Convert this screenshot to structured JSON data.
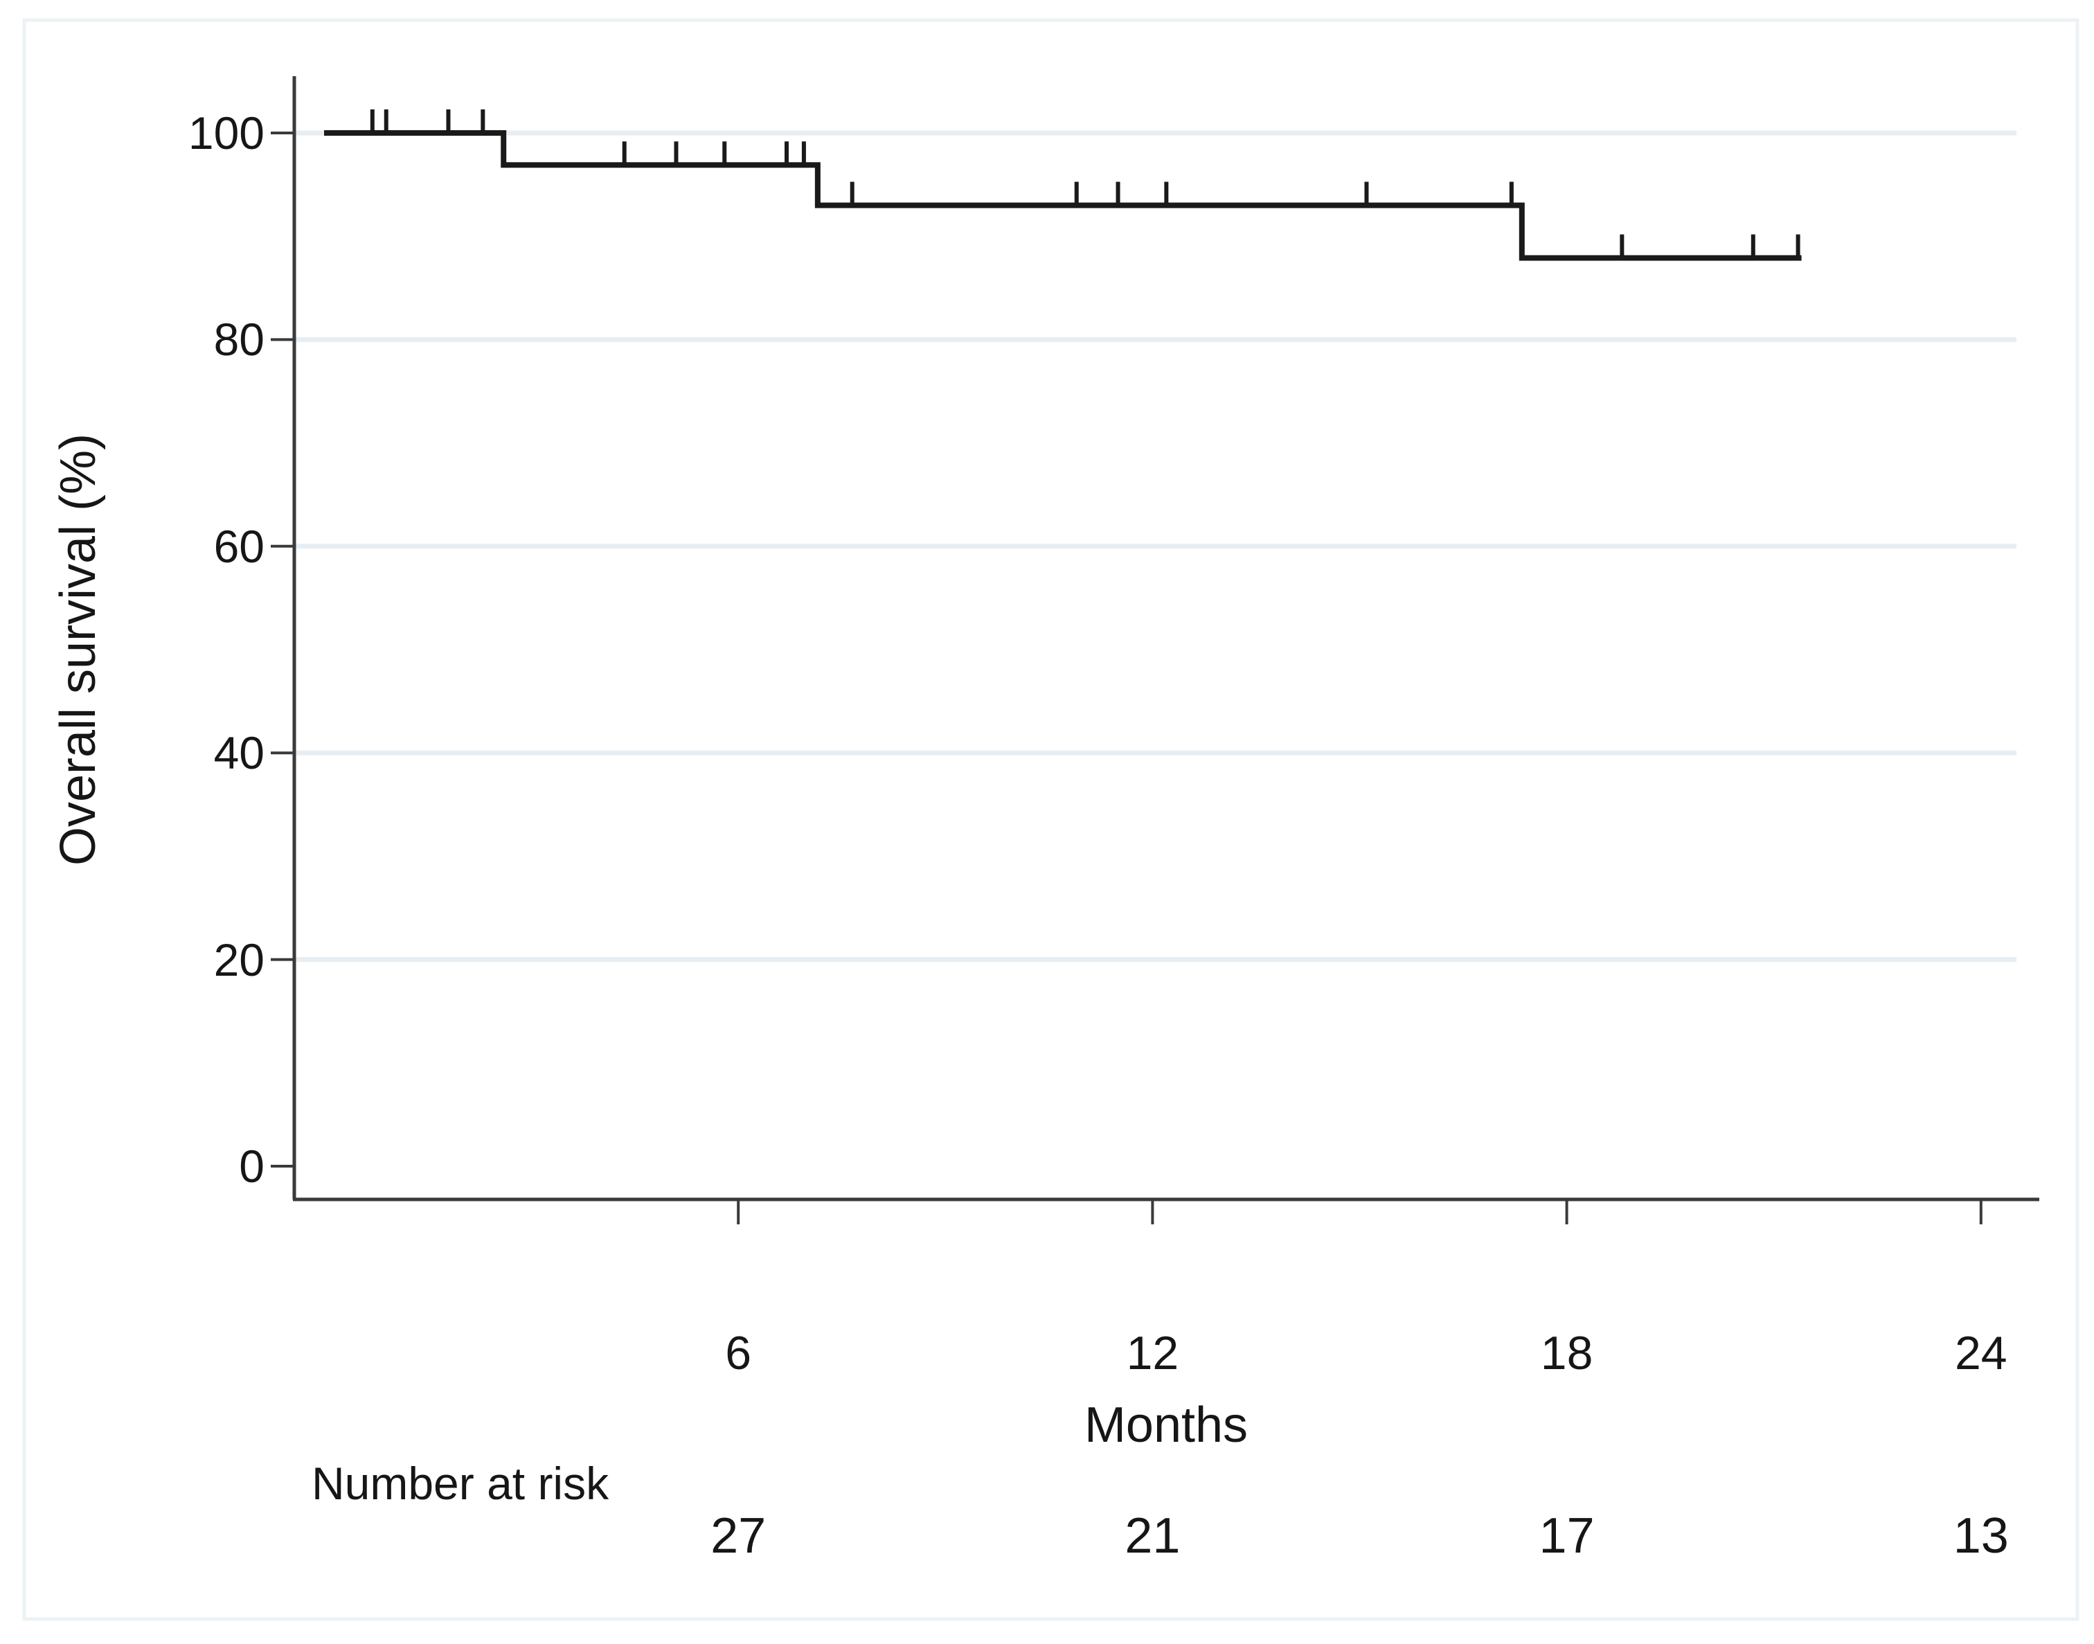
{
  "figure": {
    "background": "#ffffff",
    "frame_color": "#ecf2f4",
    "text_color": "#161616"
  },
  "chart_data": {
    "type": "line",
    "subtype": "kaplan-meier-step",
    "title": "",
    "xlabel": "Months",
    "ylabel": "Overall survival (%)",
    "x_ticks": [
      6,
      12,
      18,
      24
    ],
    "y_ticks": [
      100,
      80,
      60,
      40,
      20,
      0
    ],
    "y_gridlines": [
      100,
      80,
      60,
      40,
      20
    ],
    "xlim": [
      0,
      24.5
    ],
    "ylim": [
      0,
      105
    ],
    "grid": "on",
    "legend": "none",
    "curve_color": "#1a1a1a",
    "grid_color": "#e7eef3",
    "axis_color": "#3a3a3a",
    "km_steps": [
      {
        "t_start": 0,
        "t_end": 2.6,
        "survival": 100
      },
      {
        "t_start": 2.6,
        "t_end": 7.15,
        "survival": 96.9
      },
      {
        "t_start": 7.15,
        "t_end": 17.35,
        "survival": 93.0
      },
      {
        "t_start": 17.35,
        "t_end": 21.4,
        "survival": 87.9
      }
    ],
    "censor_marks": [
      {
        "t": 0.7,
        "survival": 100
      },
      {
        "t": 0.9,
        "survival": 100
      },
      {
        "t": 1.8,
        "survival": 100
      },
      {
        "t": 2.3,
        "survival": 100
      },
      {
        "t": 4.35,
        "survival": 96.9
      },
      {
        "t": 5.1,
        "survival": 96.9
      },
      {
        "t": 5.8,
        "survival": 96.9
      },
      {
        "t": 6.7,
        "survival": 96.9
      },
      {
        "t": 6.95,
        "survival": 96.9
      },
      {
        "t": 7.65,
        "survival": 93.0
      },
      {
        "t": 10.9,
        "survival": 93.0
      },
      {
        "t": 11.5,
        "survival": 93.0
      },
      {
        "t": 12.2,
        "survival": 93.0
      },
      {
        "t": 15.1,
        "survival": 93.0
      },
      {
        "t": 17.2,
        "survival": 93.0
      },
      {
        "t": 18.8,
        "survival": 87.9
      },
      {
        "t": 20.7,
        "survival": 87.9
      },
      {
        "t": 21.35,
        "survival": 87.9
      }
    ],
    "number_at_risk": {
      "label": "Number at risk",
      "times": [
        6,
        12,
        18,
        24
      ],
      "values": [
        27,
        21,
        17,
        13
      ]
    }
  }
}
